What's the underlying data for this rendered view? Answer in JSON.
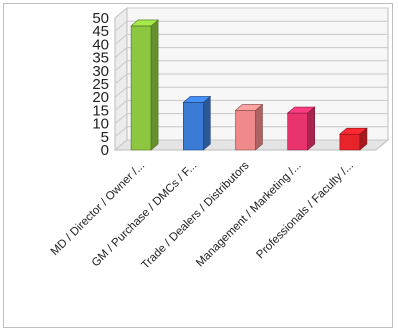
{
  "chart_data": {
    "type": "bar",
    "style": "3d",
    "categories": [
      "MD / Director / Owner /...",
      "GM / Purchase / DMCs / F...",
      "Trade / Dealers / Distributors",
      "Management / Marketing /...",
      "Professionals / Faculty /..."
    ],
    "values": [
      47,
      18,
      15,
      14,
      6
    ],
    "colors": [
      "#8dc63f",
      "#3a7bd5",
      "#f08a8a",
      "#e8336d",
      "#e8232a"
    ],
    "yticks": [
      0,
      5,
      10,
      15,
      20,
      25,
      30,
      35,
      40,
      45,
      50
    ],
    "ylim": [
      0,
      50
    ],
    "grid": true,
    "legend": "none"
  }
}
